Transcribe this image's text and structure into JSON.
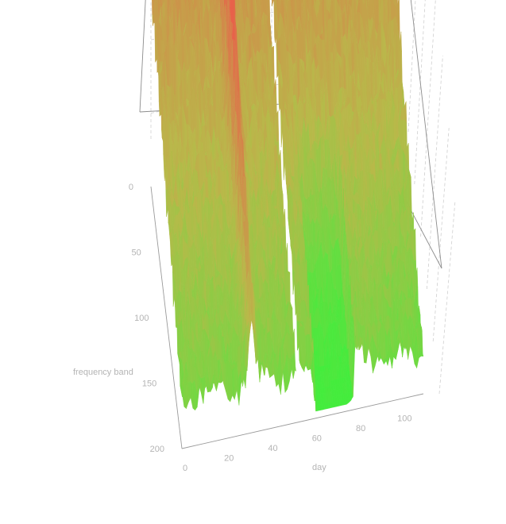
{
  "chart_data": {
    "type": "surface",
    "xlabel": "day",
    "ylabel": "frequency band",
    "zlabel": "",
    "x_ticks": [
      "0",
      "20",
      "40",
      "60",
      "80",
      "100"
    ],
    "y_ticks": [
      "0",
      "50",
      "100",
      "150",
      "200"
    ],
    "x_range": [
      0,
      110
    ],
    "y_range": [
      0,
      200
    ],
    "grid": true,
    "colors": {
      "low": "#3cf03c",
      "mid": "#b9b94a",
      "high": "#e8614a"
    },
    "features": {
      "peak_day": 32,
      "gap_days": [
        52,
        54
      ],
      "trough_days": [
        61,
        78
      ]
    }
  }
}
